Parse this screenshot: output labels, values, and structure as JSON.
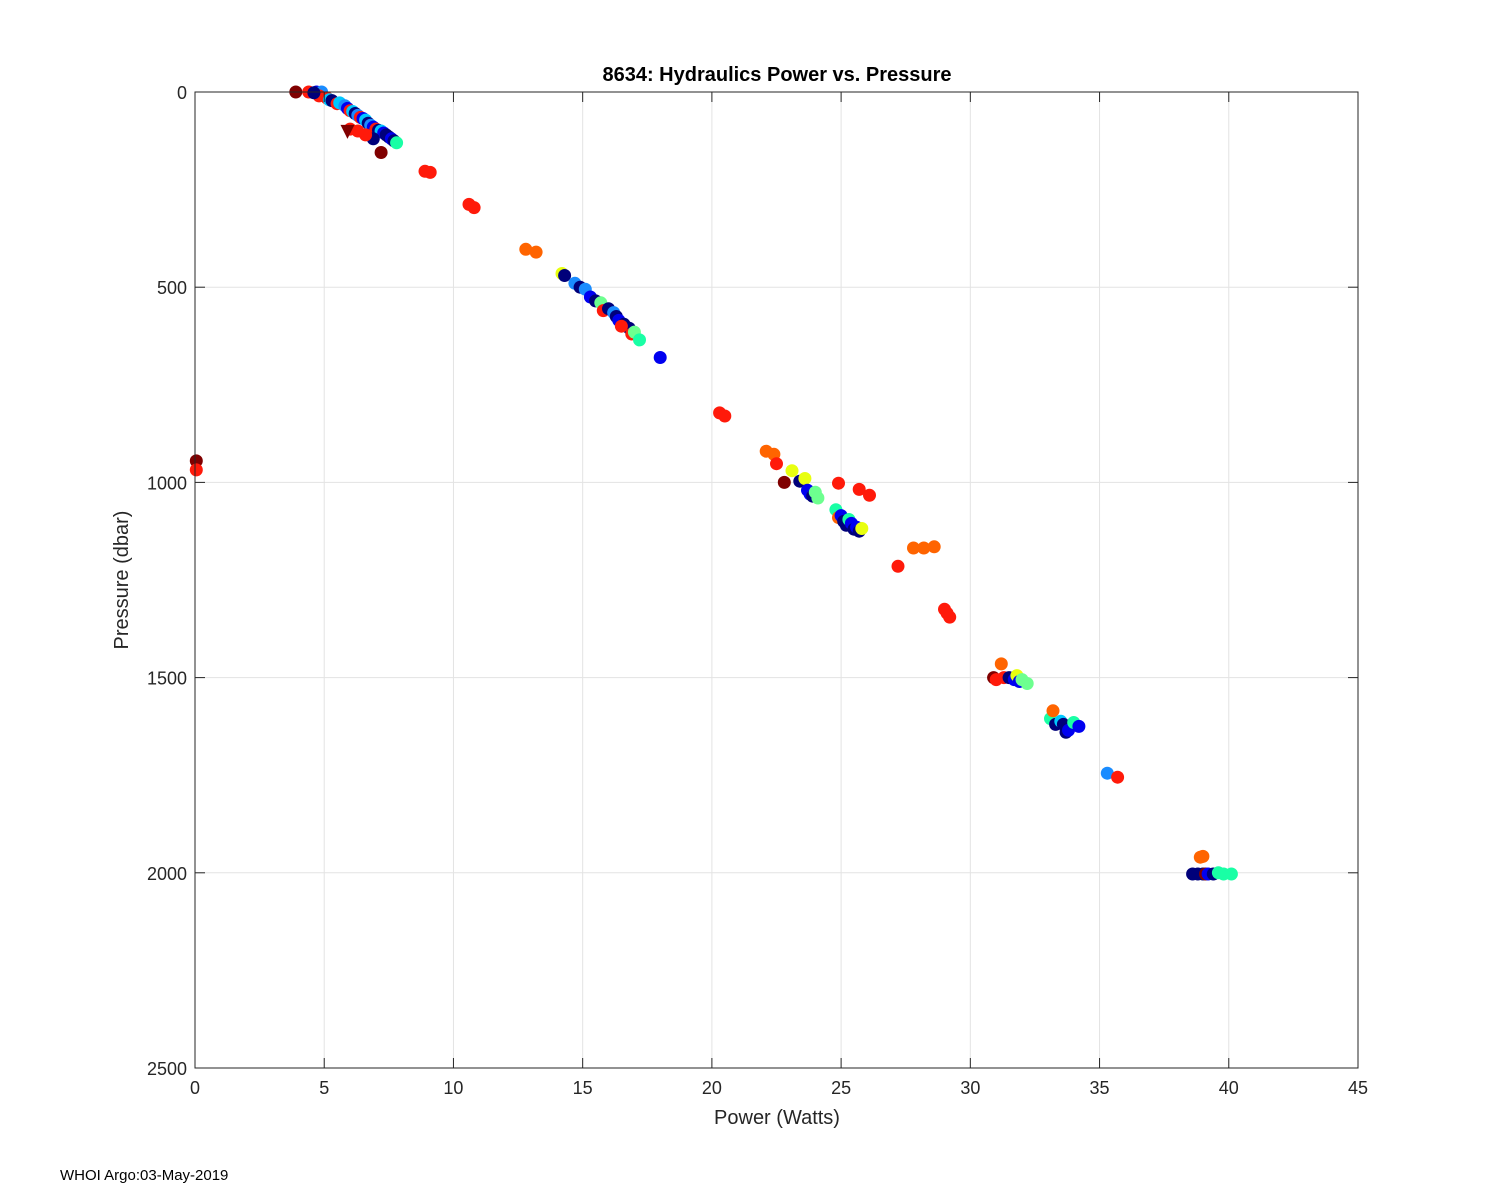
{
  "footer": "WHOI Argo:03-May-2019",
  "colors": {
    "darkred": "#800000",
    "red": "#ff1a0a",
    "orange": "#ff6400",
    "yellow": "#e8ff0f",
    "green": "#6dff8f",
    "teal": "#19ffa5",
    "cyan": "#00c8ff",
    "skyblue": "#1a8cff",
    "blue": "#0000f0",
    "navy": "#00007a"
  },
  "chart_data": {
    "type": "scatter",
    "title": "8634: Hydraulics Power vs. Pressure",
    "xlabel": "Power (Watts)",
    "ylabel": "Pressure (dbar)",
    "xlim": [
      0,
      45
    ],
    "ylim": [
      0,
      2500
    ],
    "y_reversed": true,
    "grid": true,
    "xticks": [
      0,
      5,
      10,
      15,
      20,
      25,
      30,
      35,
      40,
      45
    ],
    "yticks": [
      0,
      500,
      1000,
      1500,
      2000,
      2500
    ],
    "points": [
      {
        "x": 3.9,
        "y": 0,
        "c": "darkred"
      },
      {
        "x": 4.4,
        "y": 0,
        "c": "red"
      },
      {
        "x": 4.7,
        "y": 0,
        "c": "blue"
      },
      {
        "x": 4.9,
        "y": 0,
        "c": "skyblue"
      },
      {
        "x": 4.8,
        "y": 10,
        "c": "red"
      },
      {
        "x": 4.6,
        "y": 2,
        "c": "navy"
      },
      {
        "x": 5.1,
        "y": 15,
        "c": "red"
      },
      {
        "x": 5.2,
        "y": 20,
        "c": "cyan"
      },
      {
        "x": 5.3,
        "y": 22,
        "c": "navy"
      },
      {
        "x": 5.5,
        "y": 30,
        "c": "red"
      },
      {
        "x": 5.6,
        "y": 28,
        "c": "cyan"
      },
      {
        "x": 5.8,
        "y": 35,
        "c": "skyblue"
      },
      {
        "x": 5.9,
        "y": 42,
        "c": "blue"
      },
      {
        "x": 6.0,
        "y": 48,
        "c": "red"
      },
      {
        "x": 6.1,
        "y": 50,
        "c": "cyan"
      },
      {
        "x": 6.2,
        "y": 55,
        "c": "navy"
      },
      {
        "x": 6.3,
        "y": 60,
        "c": "skyblue"
      },
      {
        "x": 6.4,
        "y": 65,
        "c": "red"
      },
      {
        "x": 6.5,
        "y": 68,
        "c": "blue"
      },
      {
        "x": 6.6,
        "y": 72,
        "c": "cyan"
      },
      {
        "x": 6.7,
        "y": 80,
        "c": "navy"
      },
      {
        "x": 6.8,
        "y": 85,
        "c": "skyblue"
      },
      {
        "x": 6.9,
        "y": 90,
        "c": "blue"
      },
      {
        "x": 7.0,
        "y": 95,
        "c": "red"
      },
      {
        "x": 7.1,
        "y": 98,
        "c": "navy"
      },
      {
        "x": 7.2,
        "y": 100,
        "c": "cyan"
      },
      {
        "x": 7.3,
        "y": 105,
        "c": "blue"
      },
      {
        "x": 7.4,
        "y": 110,
        "c": "navy"
      },
      {
        "x": 7.5,
        "y": 115,
        "c": "navy"
      },
      {
        "x": 7.6,
        "y": 120,
        "c": "blue"
      },
      {
        "x": 7.7,
        "y": 125,
        "c": "navy"
      },
      {
        "x": 7.8,
        "y": 130,
        "c": "teal"
      },
      {
        "x": 7.2,
        "y": 155,
        "c": "darkred"
      },
      {
        "x": 6.9,
        "y": 120,
        "c": "navy"
      },
      {
        "x": 6.6,
        "y": 110,
        "c": "red"
      },
      {
        "x": 6.3,
        "y": 100,
        "c": "red"
      },
      {
        "x": 6.0,
        "y": 95,
        "c": "red"
      },
      {
        "x": 8.9,
        "y": 203,
        "c": "red"
      },
      {
        "x": 9.1,
        "y": 206,
        "c": "red"
      },
      {
        "x": 10.6,
        "y": 288,
        "c": "red"
      },
      {
        "x": 10.8,
        "y": 296,
        "c": "red"
      },
      {
        "x": 12.8,
        "y": 403,
        "c": "orange"
      },
      {
        "x": 13.2,
        "y": 410,
        "c": "orange"
      },
      {
        "x": 14.2,
        "y": 465,
        "c": "yellow"
      },
      {
        "x": 14.3,
        "y": 470,
        "c": "navy"
      },
      {
        "x": 14.7,
        "y": 490,
        "c": "skyblue"
      },
      {
        "x": 14.9,
        "y": 500,
        "c": "navy"
      },
      {
        "x": 15.1,
        "y": 505,
        "c": "skyblue"
      },
      {
        "x": 15.3,
        "y": 525,
        "c": "blue"
      },
      {
        "x": 15.5,
        "y": 535,
        "c": "navy"
      },
      {
        "x": 15.7,
        "y": 540,
        "c": "green"
      },
      {
        "x": 15.8,
        "y": 560,
        "c": "red"
      },
      {
        "x": 16.0,
        "y": 555,
        "c": "navy"
      },
      {
        "x": 16.2,
        "y": 565,
        "c": "skyblue"
      },
      {
        "x": 16.3,
        "y": 575,
        "c": "navy"
      },
      {
        "x": 16.4,
        "y": 585,
        "c": "blue"
      },
      {
        "x": 16.6,
        "y": 595,
        "c": "navy"
      },
      {
        "x": 16.8,
        "y": 605,
        "c": "navy"
      },
      {
        "x": 16.9,
        "y": 620,
        "c": "red"
      },
      {
        "x": 17.0,
        "y": 615,
        "c": "green"
      },
      {
        "x": 17.2,
        "y": 635,
        "c": "teal"
      },
      {
        "x": 16.5,
        "y": 600,
        "c": "red"
      },
      {
        "x": 18.0,
        "y": 680,
        "c": "blue"
      },
      {
        "x": 20.3,
        "y": 822,
        "c": "red"
      },
      {
        "x": 20.5,
        "y": 830,
        "c": "red"
      },
      {
        "x": 22.1,
        "y": 920,
        "c": "orange"
      },
      {
        "x": 22.4,
        "y": 928,
        "c": "orange"
      },
      {
        "x": 22.5,
        "y": 952,
        "c": "red"
      },
      {
        "x": 22.8,
        "y": 1000,
        "c": "darkred"
      },
      {
        "x": 23.1,
        "y": 970,
        "c": "yellow"
      },
      {
        "x": 23.4,
        "y": 997,
        "c": "navy"
      },
      {
        "x": 23.6,
        "y": 990,
        "c": "yellow"
      },
      {
        "x": 23.7,
        "y": 1020,
        "c": "blue"
      },
      {
        "x": 23.8,
        "y": 1030,
        "c": "blue"
      },
      {
        "x": 23.9,
        "y": 1035,
        "c": "navy"
      },
      {
        "x": 24.0,
        "y": 1025,
        "c": "green"
      },
      {
        "x": 24.1,
        "y": 1040,
        "c": "green"
      },
      {
        "x": 24.9,
        "y": 1002,
        "c": "red"
      },
      {
        "x": 25.7,
        "y": 1018,
        "c": "red"
      },
      {
        "x": 26.1,
        "y": 1033,
        "c": "red"
      },
      {
        "x": 24.8,
        "y": 1070,
        "c": "teal"
      },
      {
        "x": 24.9,
        "y": 1090,
        "c": "orange"
      },
      {
        "x": 25.0,
        "y": 1085,
        "c": "blue"
      },
      {
        "x": 25.1,
        "y": 1100,
        "c": "navy"
      },
      {
        "x": 25.2,
        "y": 1110,
        "c": "navy"
      },
      {
        "x": 25.3,
        "y": 1095,
        "c": "teal"
      },
      {
        "x": 25.4,
        "y": 1105,
        "c": "blue"
      },
      {
        "x": 25.5,
        "y": 1120,
        "c": "navy"
      },
      {
        "x": 25.6,
        "y": 1115,
        "c": "blue"
      },
      {
        "x": 25.7,
        "y": 1125,
        "c": "navy"
      },
      {
        "x": 25.8,
        "y": 1118,
        "c": "yellow"
      },
      {
        "x": 27.2,
        "y": 1215,
        "c": "red"
      },
      {
        "x": 27.8,
        "y": 1168,
        "c": "orange"
      },
      {
        "x": 28.2,
        "y": 1168,
        "c": "orange"
      },
      {
        "x": 28.6,
        "y": 1165,
        "c": "orange"
      },
      {
        "x": 29.0,
        "y": 1325,
        "c": "red"
      },
      {
        "x": 29.1,
        "y": 1335,
        "c": "red"
      },
      {
        "x": 29.2,
        "y": 1345,
        "c": "red"
      },
      {
        "x": 30.9,
        "y": 1500,
        "c": "darkred"
      },
      {
        "x": 31.0,
        "y": 1505,
        "c": "red"
      },
      {
        "x": 31.2,
        "y": 1465,
        "c": "orange"
      },
      {
        "x": 31.3,
        "y": 1500,
        "c": "red"
      },
      {
        "x": 31.5,
        "y": 1500,
        "c": "navy"
      },
      {
        "x": 31.7,
        "y": 1505,
        "c": "blue"
      },
      {
        "x": 31.8,
        "y": 1495,
        "c": "yellow"
      },
      {
        "x": 31.9,
        "y": 1510,
        "c": "blue"
      },
      {
        "x": 32.0,
        "y": 1505,
        "c": "green"
      },
      {
        "x": 32.2,
        "y": 1515,
        "c": "green"
      },
      {
        "x": 33.1,
        "y": 1605,
        "c": "teal"
      },
      {
        "x": 33.2,
        "y": 1585,
        "c": "orange"
      },
      {
        "x": 33.3,
        "y": 1620,
        "c": "navy"
      },
      {
        "x": 33.5,
        "y": 1612,
        "c": "cyan"
      },
      {
        "x": 33.6,
        "y": 1620,
        "c": "navy"
      },
      {
        "x": 33.7,
        "y": 1640,
        "c": "navy"
      },
      {
        "x": 33.8,
        "y": 1635,
        "c": "blue"
      },
      {
        "x": 34.0,
        "y": 1615,
        "c": "teal"
      },
      {
        "x": 34.2,
        "y": 1625,
        "c": "blue"
      },
      {
        "x": 35.3,
        "y": 1745,
        "c": "skyblue"
      },
      {
        "x": 35.7,
        "y": 1755,
        "c": "red"
      },
      {
        "x": 38.6,
        "y": 2003,
        "c": "navy"
      },
      {
        "x": 38.8,
        "y": 2003,
        "c": "navy"
      },
      {
        "x": 38.9,
        "y": 1960,
        "c": "orange"
      },
      {
        "x": 39.0,
        "y": 1958,
        "c": "orange"
      },
      {
        "x": 39.0,
        "y": 2003,
        "c": "navy"
      },
      {
        "x": 39.1,
        "y": 2003,
        "c": "darkred"
      },
      {
        "x": 39.2,
        "y": 2003,
        "c": "blue"
      },
      {
        "x": 39.4,
        "y": 2003,
        "c": "navy"
      },
      {
        "x": 39.6,
        "y": 2000,
        "c": "teal"
      },
      {
        "x": 39.8,
        "y": 2003,
        "c": "teal"
      },
      {
        "x": 40.1,
        "y": 2003,
        "c": "teal"
      },
      {
        "x": 0.05,
        "y": 945,
        "c": "darkred"
      },
      {
        "x": 0.05,
        "y": 968,
        "c": "red"
      }
    ],
    "triangles": [
      {
        "x": 5.9,
        "y": 102,
        "c": "darkred"
      }
    ]
  }
}
